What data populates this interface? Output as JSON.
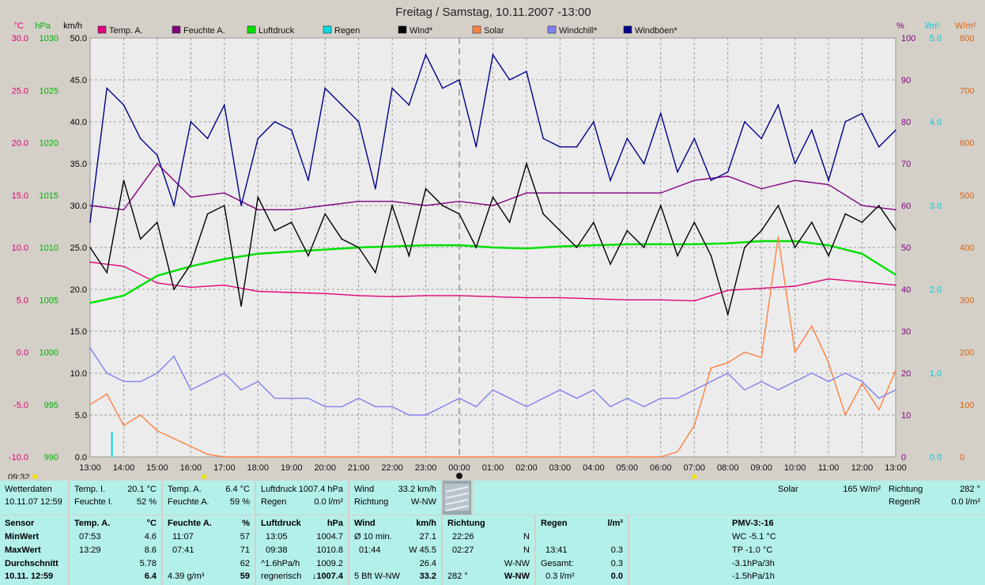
{
  "chart_data": {
    "type": "line",
    "title": "Freitag / Samstag, 10.11.2007  -13:00",
    "x_ticks": [
      "13:00",
      "14:00",
      "15:00",
      "16:00",
      "17:00",
      "18:00",
      "19:00",
      "20:00",
      "21:00",
      "22:00",
      "23:00",
      "00:00",
      "01:00",
      "02:00",
      "03:00",
      "04:00",
      "05:00",
      "06:00",
      "07:00",
      "08:00",
      "09:00",
      "10:00",
      "11:00",
      "12:00",
      "13:00"
    ],
    "axes": {
      "celsius": {
        "unit": "°C",
        "color": "#e00070",
        "ticks": [
          "30.0",
          "25.0",
          "20.0",
          "15.0",
          "10.0",
          "5.0",
          "0.0",
          "-5.0",
          "-10.0"
        ],
        "ylim": [
          -10,
          30
        ]
      },
      "hpa": {
        "unit": "hPa",
        "color": "#00b000",
        "ticks": [
          "1030",
          "1025",
          "1020",
          "1015",
          "1010",
          "1005",
          "1000",
          "995",
          "990"
        ],
        "ylim": [
          990,
          1030
        ]
      },
      "kmh": {
        "unit": "km/h",
        "color": "#000000",
        "ticks": [
          "50.0",
          "45.0",
          "40.0",
          "35.0",
          "30.0",
          "25.0",
          "20.0",
          "15.0",
          "10.0",
          "5.0",
          "0.0"
        ],
        "ylim": [
          0,
          50
        ]
      },
      "percent": {
        "unit": "%",
        "color": "#800080",
        "ticks": [
          "100",
          "90",
          "80",
          "70",
          "60",
          "50",
          "40",
          "30",
          "20",
          "10",
          "0"
        ],
        "ylim": [
          0,
          100
        ]
      },
      "rain": {
        "unit": "l/m²",
        "color": "#00c8d8",
        "ticks": [
          "5.0",
          "4.0",
          "3.0",
          "2.0",
          "1.0",
          "0.0"
        ],
        "ylim": [
          0,
          5
        ]
      },
      "solar": {
        "unit": "W/m²",
        "color": "#e06010",
        "ticks": [
          "800",
          "700",
          "600",
          "500",
          "400",
          "300",
          "200",
          "100",
          "0"
        ],
        "ylim": [
          0,
          800
        ]
      }
    },
    "series": [
      {
        "name": "Temp. A.",
        "color": "#e0007a",
        "axis": "celsius",
        "hours": [
          0,
          1,
          2,
          3,
          4,
          5,
          6,
          7,
          8,
          9,
          10,
          11,
          12,
          13,
          14,
          15,
          16,
          17,
          18,
          19,
          20,
          21,
          22,
          23,
          24
        ],
        "values": [
          8.6,
          8.2,
          6.6,
          6.2,
          6.4,
          5.8,
          5.7,
          5.6,
          5.4,
          5.3,
          5.4,
          5.4,
          5.3,
          5.2,
          5.2,
          5.1,
          5.0,
          5.0,
          4.9,
          5.9,
          6.1,
          6.3,
          7.0,
          6.7,
          6.4
        ]
      },
      {
        "name": "Feuchte A.",
        "color": "#800080",
        "axis": "percent",
        "hours": [
          0,
          1,
          2,
          3,
          4,
          5,
          6,
          7,
          8,
          9,
          10,
          11,
          12,
          13,
          14,
          15,
          16,
          17,
          18,
          19,
          20,
          21,
          22,
          23,
          24
        ],
        "values": [
          60,
          59,
          70,
          62,
          63,
          59,
          59,
          60,
          61,
          61,
          60,
          61,
          60,
          63,
          63,
          63,
          63,
          63,
          66,
          67,
          64,
          66,
          65,
          60,
          59
        ]
      },
      {
        "name": "Luftdruck",
        "color": "#00e000",
        "axis": "hpa",
        "hours": [
          0,
          1,
          2,
          3,
          4,
          5,
          6,
          7,
          8,
          9,
          10,
          11,
          12,
          13,
          14,
          15,
          16,
          17,
          18,
          19,
          20,
          21,
          22,
          23,
          24
        ],
        "values": [
          1004.7,
          1005.4,
          1007.3,
          1008.2,
          1008.9,
          1009.4,
          1009.6,
          1009.8,
          1010.0,
          1010.1,
          1010.2,
          1010.2,
          1010.0,
          1009.9,
          1010.1,
          1010.2,
          1010.3,
          1010.3,
          1010.3,
          1010.4,
          1010.6,
          1010.6,
          1010.2,
          1009.4,
          1007.4
        ]
      },
      {
        "name": "Regen",
        "color": "#00d8e0",
        "axis": "rain",
        "hours": [
          0.65
        ],
        "values": [
          0.3
        ]
      },
      {
        "name": "Wind*",
        "color": "#000000",
        "axis": "kmh",
        "hours": [
          0,
          0.5,
          1,
          1.5,
          2,
          2.5,
          3,
          3.5,
          4,
          4.5,
          5,
          5.5,
          6,
          6.5,
          7,
          7.5,
          8,
          8.5,
          9,
          9.5,
          10,
          10.5,
          11,
          11.5,
          12,
          12.5,
          13,
          13.5,
          14,
          14.5,
          15,
          15.5,
          16,
          16.5,
          17,
          17.5,
          18,
          18.5,
          19,
          19.5,
          20,
          20.5,
          21,
          21.5,
          22,
          22.5,
          23,
          23.5,
          24
        ],
        "values": [
          25,
          22,
          33,
          26,
          28,
          20,
          23,
          29,
          30,
          18,
          31,
          27,
          28,
          24,
          29,
          26,
          25,
          22,
          30,
          24,
          32,
          30,
          29,
          25,
          31,
          28,
          35,
          29,
          27,
          25,
          28,
          23,
          27,
          25,
          30,
          24,
          28,
          24,
          17,
          25,
          27,
          30,
          25,
          28,
          24,
          29,
          28,
          30,
          27.1
        ]
      },
      {
        "name": "Solar",
        "color": "#ff8040",
        "axis": "solar",
        "hours": [
          0,
          0.5,
          1,
          1.5,
          2,
          2.5,
          3,
          3.5,
          4,
          5,
          6,
          7,
          8,
          9,
          10,
          11,
          17,
          17.5,
          18,
          18.5,
          19,
          19.5,
          20,
          20.5,
          21,
          21.5,
          22,
          22.5,
          23,
          23.5,
          24
        ],
        "values": [
          100,
          120,
          60,
          80,
          50,
          35,
          20,
          5,
          0,
          0,
          0,
          0,
          0,
          0,
          0,
          0,
          0,
          10,
          60,
          170,
          180,
          200,
          190,
          420,
          200,
          250,
          180,
          80,
          140,
          90,
          165
        ]
      },
      {
        "name": "Windchill*",
        "color": "#8080f0",
        "axis": "kmh",
        "hours": [
          0,
          0.5,
          1,
          1.5,
          2,
          2.5,
          3,
          3.5,
          4,
          4.5,
          5,
          5.5,
          6,
          6.5,
          7,
          7.5,
          8,
          8.5,
          9,
          9.5,
          10,
          10.5,
          11,
          11.5,
          12,
          12.5,
          13,
          13.5,
          14,
          14.5,
          15,
          15.5,
          16,
          16.5,
          17,
          17.5,
          18,
          18.5,
          19,
          19.5,
          20,
          20.5,
          21,
          21.5,
          22,
          22.5,
          23,
          23.5,
          24
        ],
        "values": [
          13,
          10,
          9,
          9,
          10,
          12,
          8,
          9,
          10,
          8,
          9,
          7,
          7,
          7,
          6,
          6,
          7,
          6,
          6,
          5,
          5,
          6,
          7,
          6,
          8,
          7,
          6,
          7,
          8,
          7,
          8,
          6,
          7,
          6,
          7,
          7,
          8,
          9,
          10,
          8,
          9,
          8,
          9,
          10,
          9,
          10,
          9,
          7,
          8
        ]
      },
      {
        "name": "Windböen*",
        "color": "#00008a",
        "axis": "kmh",
        "hours": [
          0,
          0.5,
          1,
          1.5,
          2,
          2.5,
          3,
          3.5,
          4,
          4.5,
          5,
          5.5,
          6,
          6.5,
          7,
          7.5,
          8,
          8.5,
          9,
          9.5,
          10,
          10.5,
          11,
          11.5,
          12,
          12.5,
          13,
          13.5,
          14,
          14.5,
          15,
          15.5,
          16,
          16.5,
          17,
          17.5,
          18,
          18.5,
          19,
          19.5,
          20,
          20.5,
          21,
          21.5,
          22,
          22.5,
          23,
          23.5,
          24
        ],
        "values": [
          28,
          44,
          42,
          38,
          36,
          30,
          40,
          38,
          42,
          30,
          38,
          40,
          39,
          33,
          44,
          42,
          40,
          32,
          44,
          42,
          48,
          44,
          45,
          37,
          48,
          45,
          46,
          38,
          37,
          37,
          40,
          33,
          38,
          35,
          41,
          34,
          38,
          33,
          34,
          40,
          38,
          42,
          35,
          39,
          33,
          40,
          41,
          37,
          39
        ]
      }
    ],
    "marker_label": "09:32"
  },
  "panel": {
    "current": {
      "wetterdaten": "Wetterdaten",
      "datetime": "10.11.07 12:59",
      "temp_i_label": "Temp. I.",
      "temp_i_value": "20.1 °C",
      "feuchte_i_label": "Feuchte I.",
      "feuchte_i_value": "52 %",
      "temp_a_label": "Temp. A.",
      "temp_a_value": "6.4 °C",
      "feuchte_a_label": "Feuchte A.",
      "feuchte_a_value": "59 %",
      "luftdruck_label": "Luftdruck",
      "luftdruck_value": "1007.4 hPa",
      "regen_label": "Regen",
      "regen_value": "0.0 l/m²",
      "wind_label": "Wind",
      "wind_value": "33.2 km/h",
      "richtung_label": "Richtung",
      "richtung_value": "W-NW",
      "solar_label": "Solar",
      "solar_value": "165 W/m²",
      "richtung2_label": "Richtung",
      "richtung2_value": "282 °",
      "regenr_label": "RegenR",
      "regenr_value": "0.0 l/m²"
    },
    "stats": {
      "sensor": {
        "h": "Sensor",
        "min": "MinWert",
        "max": "MaxWert",
        "avg": "Durchschnitt",
        "date": "10.11. 12:59"
      },
      "temp": {
        "h": "Temp. A.",
        "unit": "°C",
        "min_t": "07:53",
        "min_v": "4.6",
        "max_t": "13:29",
        "max_v": "8.6",
        "avg": "5.78",
        "cur": "6.4"
      },
      "feuchte": {
        "h": "Feuchte A.",
        "unit": "%",
        "min_t": "11:07",
        "min_v": "57",
        "max_t": "07:41",
        "max_v": "71",
        "avg": "62",
        "abs": "4.39 g/m³",
        "cur": "59"
      },
      "luftdruck": {
        "h": "Luftdruck",
        "unit": "hPa",
        "min_t": "13:05",
        "min_v": "1004.7",
        "max_t": "09:38",
        "max_v": "1010.8",
        "trend_l": "^1.6hPa/h",
        "trend_v": "1009.2",
        "txt": "regnerisch",
        "cur": "↓1007.4"
      },
      "wind": {
        "h": "Wind",
        "unit": "km/h",
        "r1_l": "Ø 10 min.",
        "r1_v": "27.1",
        "r2_l": "01:44",
        "r2_v": "W 45.5",
        "r3_v": "26.4",
        "r4_l": "5 Bft W-NW",
        "r4_v": "33.2"
      },
      "richtung": {
        "h": "Richtung",
        "r1_t": "22:26",
        "r1_v": "N",
        "r2_t": "02:27",
        "r2_v": "N",
        "r3_v": "W-NW",
        "r4_l": "282 °",
        "r4_v": "W-NW"
      },
      "regen": {
        "h": "Regen",
        "unit": "l/m²",
        "r2_t": "13:41",
        "r2_v": "0.3",
        "r3_l": "Gesamt:",
        "r3_v": "0.3",
        "r4_l": "0.3 l/m²",
        "r4_v": "0.0"
      },
      "pmv": {
        "h": "PMV-3:-16",
        "l1": "WC -5.1 °C",
        "l2": "TP -1.0 °C",
        "l3": "-3.1hPa/3h",
        "l4": "-1.5hPa/1h"
      }
    }
  }
}
